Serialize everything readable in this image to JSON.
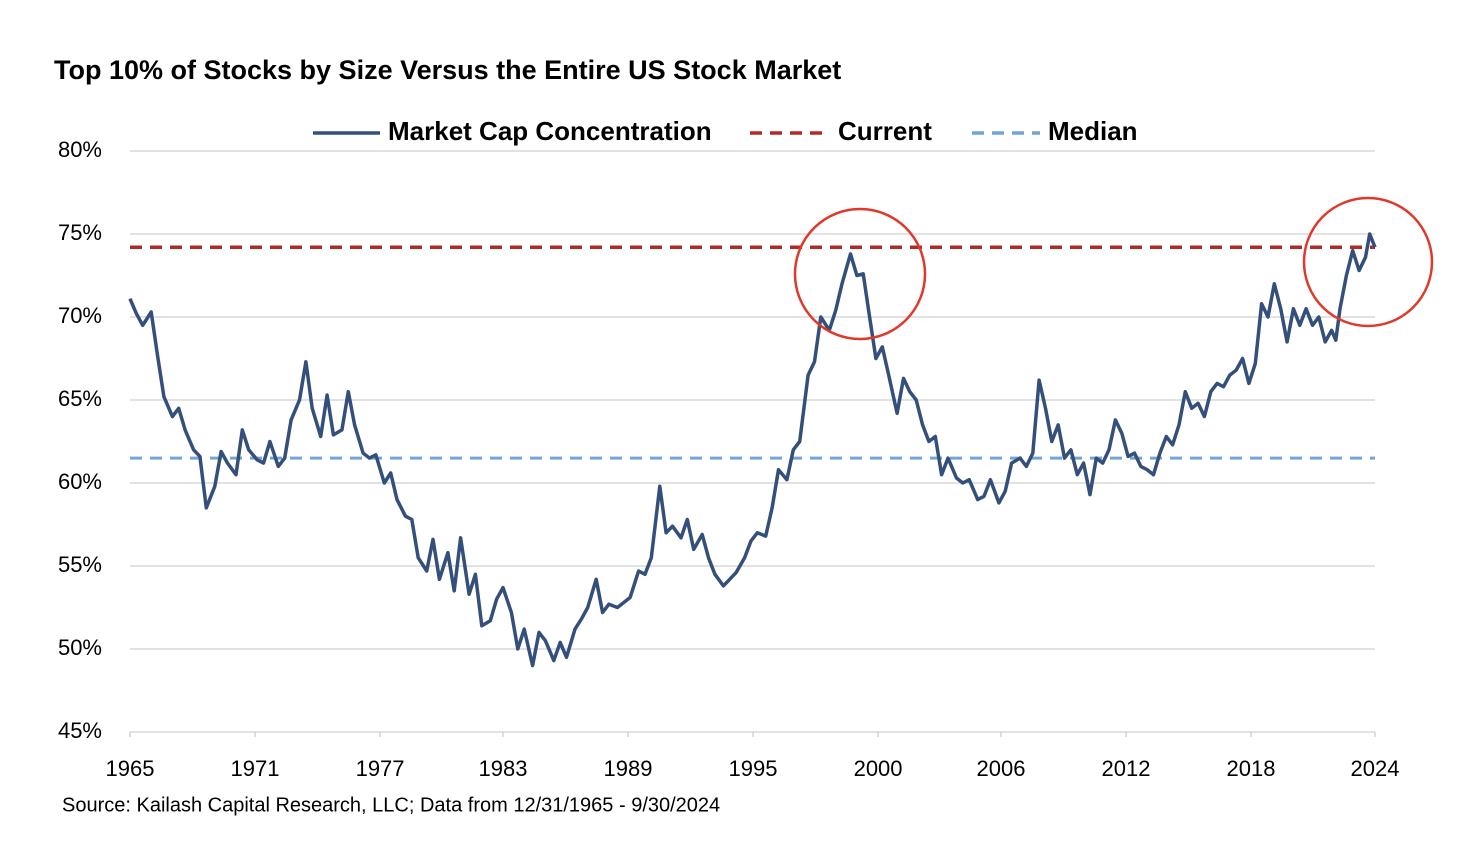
{
  "chart_data": {
    "type": "line",
    "title": "Top 10% of Stocks by Size Versus the Entire US Stock Market",
    "source": "Source: Kailash Capital Research, LLC; Data from 12/31/1965 - 9/30/2024",
    "x": [
      1966.0,
      1966.3,
      1966.6,
      1967.0,
      1967.3,
      1967.6,
      1968.0,
      1968.3,
      1968.6,
      1969.0,
      1969.3,
      1969.6,
      1970.0,
      1970.3,
      1970.6,
      1971.0,
      1971.3,
      1971.6,
      1972.0,
      1972.3,
      1972.6,
      1973.0,
      1973.3,
      1973.6,
      1974.0,
      1974.3,
      1974.6,
      1975.0,
      1975.3,
      1975.6,
      1976.0,
      1976.3,
      1976.6,
      1977.0,
      1977.3,
      1977.6,
      1978.0,
      1978.3,
      1978.6,
      1979.0,
      1979.3,
      1979.6,
      1980.0,
      1980.3,
      1980.6,
      1981.0,
      1981.3,
      1981.6,
      1982.0,
      1982.3,
      1982.6,
      1983.0,
      1983.3,
      1983.6,
      1984.0,
      1984.3,
      1984.6,
      1985.0,
      1985.3,
      1985.6,
      1986.0,
      1986.3,
      1986.6,
      1987.0,
      1987.3,
      1987.6,
      1988.0,
      1988.3,
      1988.6,
      1989.0,
      1989.3,
      1989.6,
      1990.0,
      1990.3,
      1990.6,
      1991.0,
      1991.3,
      1991.6,
      1992.0,
      1992.3,
      1992.6,
      1993.0,
      1993.3,
      1993.6,
      1994.0,
      1994.3,
      1994.6,
      1995.0,
      1995.3,
      1995.6,
      1996.0,
      1996.3,
      1996.6,
      1997.0,
      1997.3,
      1997.6,
      1998.0,
      1998.3,
      1998.6,
      1999.0,
      1999.3,
      1999.6,
      2000.0,
      2000.3,
      2000.6,
      2000.9,
      2001.2,
      2001.5,
      2001.8,
      2002.2,
      2002.5,
      2002.8,
      2003.1,
      2003.4,
      2003.7,
      2004.0,
      2004.3,
      2004.6,
      2005.0,
      2005.3,
      2005.6,
      2006.0,
      2006.3,
      2006.6,
      2007.0,
      2007.3,
      2007.6,
      2008.0,
      2008.3,
      2008.6,
      2008.9,
      2009.2,
      2009.5,
      2009.8,
      2010.1,
      2010.4,
      2010.7,
      2011.0,
      2011.3,
      2011.6,
      2011.9,
      2012.2,
      2012.5,
      2012.8,
      2013.1,
      2013.4,
      2013.7,
      2014.0,
      2014.3,
      2014.6,
      2014.9,
      2015.2,
      2015.5,
      2015.8,
      2016.1,
      2016.4,
      2016.7,
      2017.0,
      2017.3,
      2017.6,
      2017.9,
      2018.2,
      2018.5,
      2018.8,
      2019.1,
      2019.4,
      2019.7,
      2020.0,
      2020.3,
      2020.6,
      2020.9,
      2021.2,
      2021.5,
      2021.8,
      2022.1,
      2022.4,
      2022.7,
      2022.9,
      2023.1,
      2023.4,
      2023.7,
      2024.0,
      2024.3,
      2024.5,
      2024.75
    ],
    "series": [
      {
        "name": "Market Cap Concentration",
        "color": "#34507a",
        "values": [
          71.1,
          70.2,
          69.5,
          70.3,
          67.7,
          65.2,
          64.0,
          64.5,
          63.2,
          62.0,
          61.6,
          58.5,
          59.8,
          61.9,
          61.2,
          60.5,
          63.2,
          62.0,
          61.4,
          61.2,
          62.5,
          61.0,
          61.5,
          63.8,
          65.0,
          67.3,
          64.5,
          62.8,
          65.3,
          62.9,
          63.2,
          65.5,
          63.5,
          61.8,
          61.5,
          61.7,
          60.0,
          60.6,
          59.0,
          58.0,
          57.8,
          55.5,
          54.7,
          56.6,
          54.2,
          55.8,
          53.5,
          56.7,
          53.3,
          54.5,
          51.4,
          51.7,
          53.0,
          53.7,
          52.2,
          50.0,
          51.2,
          49.0,
          51.0,
          50.5,
          49.3,
          50.4,
          49.5,
          51.2,
          51.8,
          52.5,
          54.2,
          52.2,
          52.7,
          52.5,
          52.8,
          53.1,
          54.7,
          54.5,
          55.5,
          59.8,
          57.0,
          57.4,
          56.7,
          57.8,
          56.0,
          56.9,
          55.5,
          54.5,
          53.8,
          54.2,
          54.6,
          55.5,
          56.5,
          57.0,
          56.8,
          58.5,
          60.8,
          60.2,
          62.0,
          62.5,
          66.5,
          67.3,
          70.0,
          69.2,
          70.4,
          72.0,
          73.8,
          72.5,
          72.6,
          70.0,
          67.5,
          68.2,
          66.5,
          64.2,
          66.3,
          65.5,
          65.0,
          63.5,
          62.5,
          62.8,
          60.5,
          61.5,
          60.3,
          60.0,
          60.2,
          59.0,
          59.2,
          60.2,
          58.8,
          59.5,
          61.2,
          61.5,
          61.0,
          61.8,
          66.2,
          64.5,
          62.5,
          63.5,
          61.5,
          62.0,
          60.5,
          61.2,
          59.3,
          61.5,
          61.2,
          62.0,
          63.8,
          63.0,
          61.6,
          61.8,
          61.0,
          60.8,
          60.5,
          61.8,
          62.8,
          62.3,
          63.5,
          65.5,
          64.5,
          64.8,
          64.0,
          65.5,
          66.0,
          65.8,
          66.5,
          66.8,
          67.5,
          66.0,
          67.2,
          70.8,
          70.0,
          72.0,
          70.5,
          68.5,
          70.5,
          69.5,
          70.5,
          69.5,
          70.0,
          68.5,
          69.2,
          68.6,
          70.5,
          72.5,
          74.0,
          72.8,
          73.6,
          75.0,
          74.2
        ]
      }
    ],
    "reference_lines": [
      {
        "name": "Current",
        "color": "#b22a25",
        "value": 74.2
      },
      {
        "name": "Median",
        "color": "#74a3d6",
        "value": 61.5
      }
    ],
    "xlim": [
      1966.0,
      2024.75
    ],
    "xticks": [
      {
        "value": 1966.0,
        "label": "1965"
      },
      {
        "value": 1971.9,
        "label": "1971"
      },
      {
        "value": 1977.8,
        "label": "1977"
      },
      {
        "value": 1983.6,
        "label": "1983"
      },
      {
        "value": 1989.5,
        "label": "1989"
      },
      {
        "value": 1995.4,
        "label": "1995"
      },
      {
        "value": 2001.3,
        "label": "2000"
      },
      {
        "value": 2007.1,
        "label": "2006"
      },
      {
        "value": 2013.0,
        "label": "2012"
      },
      {
        "value": 2018.9,
        "label": "2018"
      },
      {
        "value": 2024.75,
        "label": "2024"
      }
    ],
    "ylim": [
      45,
      80
    ],
    "yticks": [
      {
        "value": 45,
        "label": "45%"
      },
      {
        "value": 50,
        "label": "50%"
      },
      {
        "value": 55,
        "label": "55%"
      },
      {
        "value": 60,
        "label": "60%"
      },
      {
        "value": 65,
        "label": "65%"
      },
      {
        "value": 70,
        "label": "70%"
      },
      {
        "value": 75,
        "label": "75%"
      },
      {
        "value": 80,
        "label": "80%"
      }
    ],
    "grid": true
  }
}
